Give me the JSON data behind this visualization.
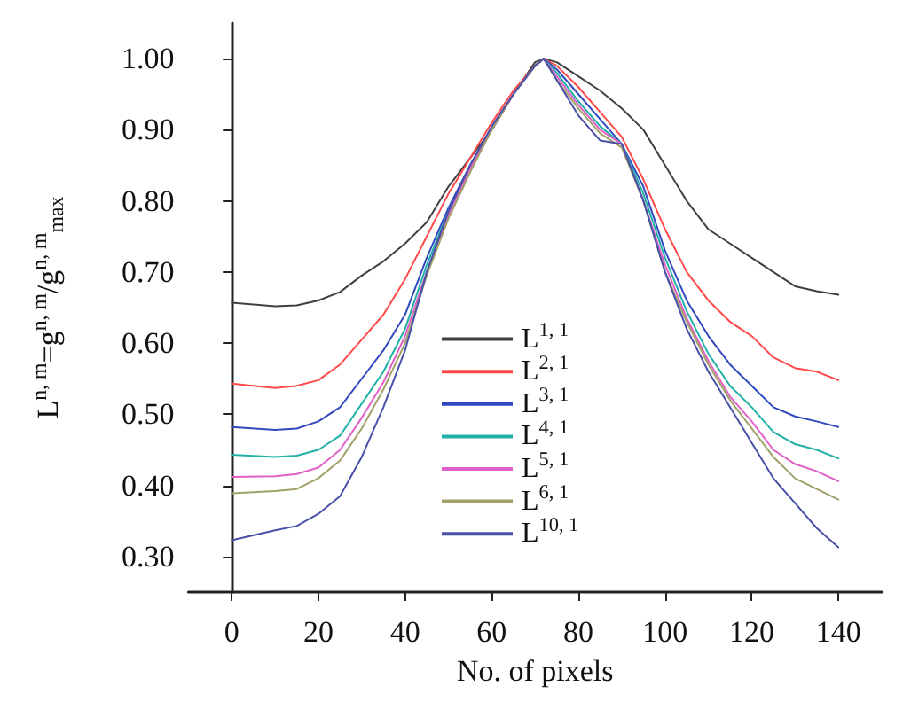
{
  "chart_data": {
    "type": "line",
    "xlabel": "No. of pixels",
    "ylabel": "L$^{n, m}$=g$^{n, m}$/g$^{n, m}$$_{max}$",
    "x": [
      0,
      10,
      15,
      20,
      25,
      30,
      35,
      40,
      45,
      50,
      55,
      60,
      65,
      70,
      72,
      75,
      80,
      85,
      90,
      95,
      100,
      105,
      110,
      115,
      120,
      125,
      130,
      135,
      140
    ],
    "xlim": [
      -10,
      150
    ],
    "xticks": [
      0,
      20,
      40,
      60,
      80,
      100,
      120,
      140
    ],
    "ylim": [
      0.25,
      1.05
    ],
    "yticks": [
      {
        "value": 0.3,
        "label": "0.30"
      },
      {
        "value": 0.4,
        "label": "0.40"
      },
      {
        "value": 0.5,
        "label": "0.50"
      },
      {
        "value": 0.6,
        "label": "0.60"
      },
      {
        "value": 0.7,
        "label": "0.70"
      },
      {
        "value": 0.8,
        "label": "0.80"
      },
      {
        "value": 0.9,
        "label": "0.90"
      },
      {
        "value": 1.0,
        "label": "1.00"
      }
    ],
    "grid": false,
    "legend": "center",
    "marker": "none",
    "line_style": "solid",
    "series": [
      {
        "name": "L$^{1, 1}$",
        "color": "#404040",
        "values": [
          0.657,
          0.652,
          0.653,
          0.66,
          0.672,
          0.695,
          0.715,
          0.74,
          0.77,
          0.82,
          0.86,
          0.9,
          0.95,
          0.995,
          1.0,
          0.995,
          0.975,
          0.955,
          0.93,
          0.9,
          0.85,
          0.8,
          0.76,
          0.74,
          0.72,
          0.7,
          0.68,
          0.673,
          0.668
        ]
      },
      {
        "name": "L$^{2, 1}$",
        "color": "#ff4a4a",
        "values": [
          0.543,
          0.537,
          0.54,
          0.548,
          0.57,
          0.605,
          0.64,
          0.69,
          0.75,
          0.81,
          0.86,
          0.91,
          0.955,
          0.99,
          1.0,
          0.99,
          0.96,
          0.925,
          0.89,
          0.83,
          0.76,
          0.7,
          0.66,
          0.63,
          0.61,
          0.58,
          0.565,
          0.56,
          0.548
        ]
      },
      {
        "name": "L$^{3, 1}$",
        "color": "#3048c0",
        "values": [
          0.482,
          0.478,
          0.48,
          0.49,
          0.51,
          0.55,
          0.59,
          0.64,
          0.72,
          0.79,
          0.85,
          0.9,
          0.95,
          0.99,
          1.0,
          0.985,
          0.95,
          0.915,
          0.88,
          0.82,
          0.73,
          0.66,
          0.61,
          0.57,
          0.54,
          0.51,
          0.497,
          0.49,
          0.482
        ]
      },
      {
        "name": "L$^{4, 1}$",
        "color": "#20b0a8",
        "values": [
          0.443,
          0.44,
          0.442,
          0.45,
          0.47,
          0.515,
          0.56,
          0.62,
          0.71,
          0.785,
          0.845,
          0.9,
          0.95,
          0.99,
          1.0,
          0.98,
          0.94,
          0.905,
          0.88,
          0.81,
          0.72,
          0.645,
          0.585,
          0.54,
          0.51,
          0.475,
          0.458,
          0.45,
          0.438
        ]
      },
      {
        "name": "L$^{5, 1}$",
        "color": "#e060c8",
        "values": [
          0.412,
          0.413,
          0.416,
          0.425,
          0.45,
          0.495,
          0.545,
          0.61,
          0.7,
          0.78,
          0.845,
          0.9,
          0.95,
          0.99,
          1.0,
          0.975,
          0.935,
          0.9,
          0.88,
          0.8,
          0.71,
          0.635,
          0.575,
          0.525,
          0.49,
          0.45,
          0.43,
          0.42,
          0.406
        ]
      },
      {
        "name": "L$^{6, 1}$",
        "color": "#a0a068",
        "values": [
          0.389,
          0.392,
          0.395,
          0.41,
          0.435,
          0.48,
          0.535,
          0.6,
          0.695,
          0.775,
          0.84,
          0.9,
          0.95,
          0.99,
          1.0,
          0.97,
          0.93,
          0.895,
          0.875,
          0.8,
          0.7,
          0.63,
          0.57,
          0.52,
          0.48,
          0.44,
          0.41,
          0.395,
          0.38
        ]
      },
      {
        "name": "L$^{10, 1}$",
        "color": "#4850a8",
        "values": [
          0.323,
          0.337,
          0.343,
          0.36,
          0.385,
          0.44,
          0.51,
          0.59,
          0.7,
          0.785,
          0.85,
          0.905,
          0.95,
          0.99,
          1.0,
          0.97,
          0.92,
          0.885,
          0.88,
          0.8,
          0.7,
          0.62,
          0.56,
          0.51,
          0.46,
          0.41,
          0.375,
          0.34,
          0.313
        ]
      }
    ]
  }
}
